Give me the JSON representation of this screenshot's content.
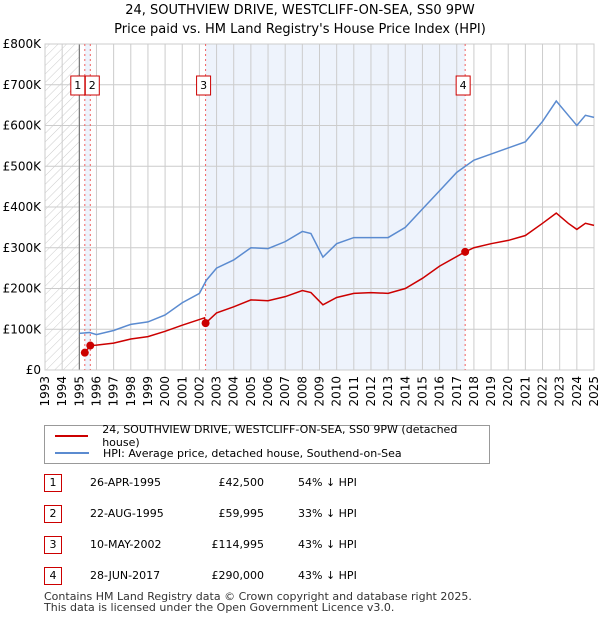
{
  "title": "24, SOUTHVIEW DRIVE, WESTCLIFF-ON-SEA, SS0 9PW",
  "subtitle": "Price paid vs. HM Land Registry's House Price Index (HPI)",
  "chart_data": {
    "type": "line",
    "xlim": [
      1993,
      2025
    ],
    "ylim": [
      0,
      800000
    ],
    "yticks": [
      {
        "v": 0,
        "label": "£0"
      },
      {
        "v": 100000,
        "label": "£100K"
      },
      {
        "v": 200000,
        "label": "£200K"
      },
      {
        "v": 300000,
        "label": "£300K"
      },
      {
        "v": 400000,
        "label": "£400K"
      },
      {
        "v": 500000,
        "label": "£500K"
      },
      {
        "v": 600000,
        "label": "£600K"
      },
      {
        "v": 700000,
        "label": "£700K"
      },
      {
        "v": 800000,
        "label": "£800K"
      }
    ],
    "xticks": [
      "1993",
      "1994",
      "1995",
      "1996",
      "1997",
      "1998",
      "1999",
      "2000",
      "2001",
      "2002",
      "2003",
      "2004",
      "2005",
      "2006",
      "2007",
      "2008",
      "2009",
      "2010",
      "2011",
      "2012",
      "2013",
      "2014",
      "2015",
      "2016",
      "2017",
      "2018",
      "2019",
      "2020",
      "2021",
      "2022",
      "2023",
      "2024",
      "2025"
    ],
    "series": [
      {
        "name": "24, SOUTHVIEW DRIVE, WESTCLIFF-ON-SEA, SS0 9PW (detached house)",
        "color": "#cc0000",
        "x": [
          1995.32,
          1995.64,
          1996,
          1997,
          1998,
          1999,
          2000,
          2001,
          2002.3,
          2002.36,
          2003,
          2004,
          2005,
          2006,
          2007,
          2008,
          2008.5,
          2009.2,
          2010,
          2011,
          2012,
          2013,
          2014,
          2015,
          2016,
          2017.49,
          2018,
          2019,
          2020,
          2021,
          2022,
          2022.8,
          2023.5,
          2024,
          2024.5,
          2025
        ],
        "y": [
          42500,
          59995,
          61000,
          66000,
          76000,
          82000,
          95000,
          110000,
          128000,
          114995,
          140000,
          155000,
          172000,
          170000,
          180000,
          195000,
          190000,
          160000,
          178000,
          188000,
          190000,
          188000,
          200000,
          225000,
          255000,
          290000,
          300000,
          310000,
          318000,
          330000,
          360000,
          385000,
          360000,
          345000,
          360000,
          355000
        ]
      },
      {
        "name": "HPI: Average price, detached house, Southend-on-Sea",
        "color": "#5b8bd0",
        "x": [
          1995,
          1995.6,
          1996,
          1997,
          1998,
          1999,
          2000,
          2001,
          2002,
          2002.4,
          2003,
          2004,
          2005,
          2006,
          2007,
          2008,
          2008.5,
          2009.2,
          2010,
          2011,
          2012,
          2013,
          2014,
          2015,
          2016,
          2017,
          2017.5,
          2018,
          2019,
          2020,
          2021,
          2022,
          2022.8,
          2023.5,
          2024,
          2024.5,
          2025
        ],
        "y": [
          90000,
          92000,
          87000,
          97000,
          112000,
          118000,
          135000,
          165000,
          188000,
          220000,
          250000,
          270000,
          300000,
          298000,
          315000,
          340000,
          335000,
          277000,
          310000,
          325000,
          325000,
          325000,
          350000,
          395000,
          440000,
          485000,
          500000,
          515000,
          530000,
          545000,
          560000,
          610000,
          660000,
          625000,
          600000,
          625000,
          620000
        ]
      }
    ],
    "sales": [
      {
        "n": "1",
        "x": 1995.32,
        "y": 42500
      },
      {
        "n": "2",
        "x": 1995.64,
        "y": 59995
      },
      {
        "n": "3",
        "x": 2002.36,
        "y": 114995
      },
      {
        "n": "4",
        "x": 2017.49,
        "y": 290000
      }
    ]
  },
  "legend": [
    "24, SOUTHVIEW DRIVE, WESTCLIFF-ON-SEA, SS0 9PW (detached house)",
    "HPI: Average price, detached house, Southend-on-Sea"
  ],
  "table": [
    {
      "n": "1",
      "date": "26-APR-1995",
      "price": "£42,500",
      "hpi": "54% ↓ HPI"
    },
    {
      "n": "2",
      "date": "22-AUG-1995",
      "price": "£59,995",
      "hpi": "33% ↓ HPI"
    },
    {
      "n": "3",
      "date": "10-MAY-2002",
      "price": "£114,995",
      "hpi": "43% ↓ HPI"
    },
    {
      "n": "4",
      "date": "28-JUN-2017",
      "price": "£290,000",
      "hpi": "43% ↓ HPI"
    }
  ],
  "footer": [
    "Contains HM Land Registry data © Crown copyright and database right 2025.",
    "This data is licensed under the Open Government Licence v3.0."
  ]
}
